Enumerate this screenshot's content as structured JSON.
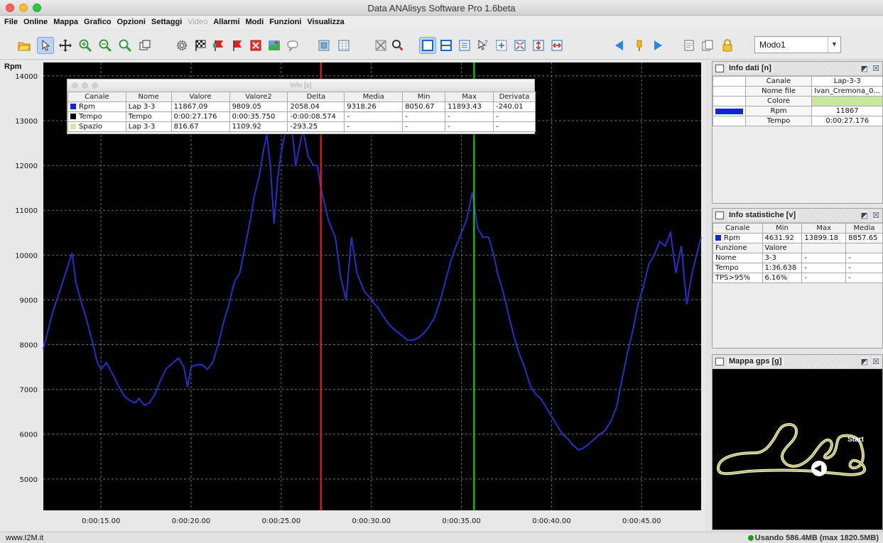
{
  "window": {
    "title": "Data ANAlisys Software Pro 1.6beta"
  },
  "menu": [
    "File",
    "Online",
    "Mappa",
    "Grafico",
    "Opzioni",
    "Settaggi",
    "Video",
    "Allarmi",
    "Modi",
    "Funzioni",
    "Visualizza"
  ],
  "menu_disabled": [
    "Video"
  ],
  "toolbar": {
    "mode_value": "Modo1",
    "icons": [
      "open-folder-icon",
      "pointer-icon",
      "pan-icon",
      "zoom-in-icon",
      "zoom-out-icon",
      "zoom-fit-icon",
      "copy-window-icon",
      "gear-icon",
      "checkered-flag-icon",
      "red-flag-icon",
      "red-flag-2-icon",
      "fit-box-icon",
      "map-icon",
      "chat-icon",
      "table-icon",
      "grid-icon",
      "no-gps-icon",
      "search-icon",
      "single-view-icon",
      "split-view-icon",
      "list-view-icon",
      "help-icon",
      "zoom-box-icon",
      "expand-icon",
      "vertical-fit-icon",
      "horizontal-fit-icon",
      "prev-arrow-icon",
      "marker-icon",
      "next-arrow-icon",
      "notes-icon",
      "duplicate-icon",
      "lock-icon"
    ]
  },
  "colors": {
    "rpm_series": "#2a2ec8",
    "red_cursor": "#ff1a1a",
    "green_cursor": "#18d818",
    "plot_bg": "#000000",
    "gps_track": "#f2f2b2"
  },
  "chart_data": {
    "type": "line",
    "ylabel": "Rpm",
    "xlabel": "",
    "ylim": [
      4300,
      14300
    ],
    "xlim": [
      11.8,
      48.3
    ],
    "yticks": [
      5000,
      6000,
      7000,
      8000,
      9000,
      10000,
      11000,
      12000,
      13000,
      14000
    ],
    "xticks": [
      15,
      20,
      25,
      30,
      35,
      40,
      45
    ],
    "xtick_labels": [
      "0:00:15.00",
      "0:00:20.00",
      "0:00:25.00",
      "0:00:30.00",
      "0:00:35.00",
      "0:00:40.00",
      "0:00:45.00"
    ],
    "grid": true,
    "cursors": {
      "red_x": 27.2,
      "green_x": 35.7
    },
    "series": [
      {
        "name": "Rpm",
        "x": [
          11.8,
          12.3,
          12.8,
          13.2,
          13.4,
          13.6,
          13.9,
          14.1,
          14.5,
          14.8,
          15.0,
          15.3,
          15.7,
          16.0,
          16.3,
          16.6,
          16.9,
          17.1,
          17.4,
          17.7,
          18.0,
          18.3,
          18.6,
          19.0,
          19.3,
          19.6,
          19.8,
          20.0,
          20.3,
          20.6,
          20.9,
          21.2,
          21.5,
          21.8,
          22.1,
          22.4,
          22.7,
          23.0,
          23.2,
          23.5,
          23.8,
          24.0,
          24.2,
          24.4,
          24.6,
          24.8,
          25.0,
          25.2,
          25.4,
          25.6,
          25.8,
          26.0,
          26.2,
          26.5,
          26.8,
          27.0,
          27.2,
          27.6,
          28.0,
          28.3,
          28.6,
          28.9,
          29.2,
          29.6,
          30.0,
          30.4,
          30.8,
          31.1,
          31.4,
          31.7,
          32.0,
          32.3,
          32.6,
          32.9,
          33.2,
          33.5,
          33.8,
          34.1,
          34.4,
          34.7,
          35.0,
          35.3,
          35.6,
          35.9,
          36.2,
          36.5,
          36.8,
          37.0,
          37.3,
          37.6,
          37.9,
          38.2,
          38.5,
          38.8,
          39.1,
          39.4,
          39.7,
          40.0,
          40.3,
          40.6,
          40.9,
          41.2,
          41.5,
          41.8,
          42.1,
          42.4,
          42.7,
          43.0,
          43.3,
          43.6,
          43.9,
          44.2,
          44.5,
          44.8,
          45.1,
          45.4,
          45.7,
          46.0,
          46.3,
          46.6,
          46.9,
          47.2,
          47.5,
          47.8,
          48.3
        ],
        "values": [
          7900,
          8700,
          9300,
          9800,
          10050,
          9400,
          8950,
          8700,
          8100,
          7600,
          7450,
          7600,
          7300,
          7050,
          6850,
          6750,
          6700,
          6800,
          6650,
          6700,
          6900,
          7200,
          7450,
          7600,
          7700,
          7500,
          7050,
          7500,
          7550,
          7550,
          7450,
          7600,
          8000,
          8500,
          8900,
          9400,
          9600,
          10200,
          10600,
          11300,
          11800,
          12300,
          12700,
          12000,
          10700,
          11700,
          12300,
          12700,
          13000,
          12800,
          12000,
          12400,
          12800,
          12200,
          12000,
          12000,
          11500,
          10800,
          10400,
          9500,
          9000,
          10400,
          9600,
          9200,
          9000,
          8800,
          8550,
          8400,
          8300,
          8200,
          8100,
          8100,
          8150,
          8250,
          8400,
          8600,
          8950,
          9400,
          9850,
          10200,
          10500,
          10800,
          11400,
          10600,
          10400,
          10400,
          10000,
          9600,
          9200,
          8700,
          8200,
          7800,
          7500,
          7100,
          6900,
          6800,
          6600,
          6400,
          6200,
          6000,
          5900,
          5750,
          5650,
          5700,
          5800,
          5900,
          6000,
          6100,
          6300,
          6600,
          7200,
          7800,
          8300,
          8900,
          9300,
          9800,
          10000,
          10300,
          10200,
          10500,
          9600,
          10200,
          8900,
          9600,
          10400
        ]
      }
    ]
  },
  "info_popup": {
    "title": "Info [s]",
    "headers": [
      "Canale",
      "Nome",
      "Valore",
      "Valore2",
      "Delta",
      "Media",
      "Min",
      "Max",
      "Derivata"
    ],
    "rows": [
      {
        "color": "#1024d8",
        "cells": [
          "Rpm",
          "Lap 3-3",
          "11867.09",
          "9809.05",
          "2058.04",
          "9318.26",
          "8050.67",
          "11893.43",
          "-240.01"
        ]
      },
      {
        "color": "#000000",
        "cells": [
          "Tempo",
          "Tempo",
          "0:00:27.176",
          "0:00:35.750",
          "-0:00:08.574",
          "-",
          "-",
          "-",
          "-"
        ]
      },
      {
        "color": "#d8eba4",
        "cells": [
          "Spazio",
          "Lap 3-3",
          "816.67",
          "1109.92",
          "-293.25",
          "-",
          "-",
          "-",
          "-"
        ]
      }
    ]
  },
  "info_dati": {
    "title": "Info dati [n]",
    "rows": [
      {
        "label": "Canale",
        "value": "Lap-3-3"
      },
      {
        "label": "Nome file",
        "value": "Ivan_Cremona_0..."
      },
      {
        "label": "Colore",
        "value": ""
      },
      {
        "label": "Rpm",
        "value": "11867"
      },
      {
        "label": "Tempo",
        "value": "0:00:27.176"
      }
    ],
    "swatch_color": "#1024d8",
    "colore_bar": "#c9e6a1"
  },
  "info_statistiche": {
    "title": "Info statistiche [v]",
    "headers": [
      "Canale",
      "Min",
      "Max",
      "Media"
    ],
    "channel_row": [
      "Rpm",
      "4631.92",
      "13899.18",
      "8857.65"
    ],
    "func_headers": [
      "Funzione",
      "Valore"
    ],
    "func_rows": [
      [
        "Nome",
        "3-3",
        "-",
        "-"
      ],
      [
        "Tempo",
        "1:36.638",
        "-",
        "-"
      ],
      [
        "TPS>95%",
        "6.16%",
        "-",
        "-"
      ]
    ]
  },
  "gps_map": {
    "title": "Mappa gps [g]",
    "start_label": "Start"
  },
  "status": {
    "left": "www.I2M.it",
    "right": "Usando 586.4MB (max 1820.5MB)"
  }
}
